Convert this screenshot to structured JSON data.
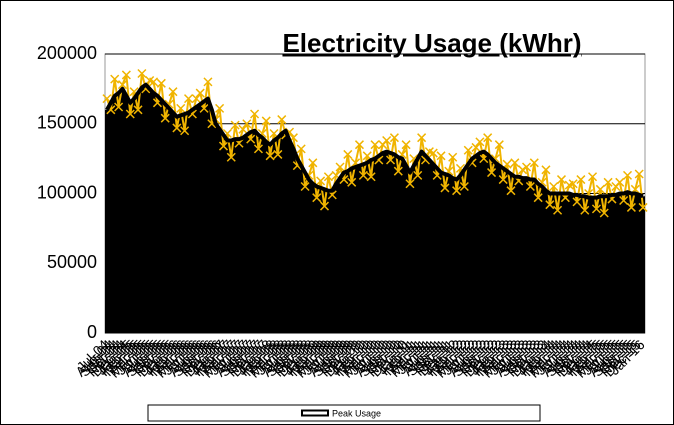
{
  "chart_data": {
    "type": "line",
    "title": "Electricity Usage (kWhr)",
    "categories": [
      "Jul-04",
      "Aug-04",
      "Sep-04",
      "Oct-04",
      "Nov-04",
      "Dec-04",
      "Jan-05",
      "Feb-05",
      "Mar-05",
      "Apr-05",
      "May-05",
      "Jun-05",
      "Jul-05",
      "Aug-05",
      "Sep-05",
      "Oct-05",
      "Nov-05",
      "Dec-05",
      "Jan-06",
      "Feb-06",
      "Mar-06",
      "Apr-06",
      "May-06",
      "Jun-06",
      "Jul-06",
      "Aug-06",
      "Sep-06",
      "Oct-06",
      "Nov-06",
      "Dec-06",
      "Jan-07",
      "Feb-07",
      "Mar-07",
      "Apr-07",
      "May-07",
      "Jun-07",
      "Jul-07",
      "Aug-07",
      "Sep-07",
      "Oct-07",
      "Nov-07",
      "Dec-07",
      "Jan-08",
      "Feb-08",
      "Mar-08",
      "Apr-08",
      "May-08",
      "Jun-08",
      "Jul-08",
      "Aug-08",
      "Sep-08",
      "Oct-08",
      "Nov-08",
      "Dec-08",
      "Jan-09",
      "Feb-09",
      "Mar-09",
      "Apr-09",
      "May-09",
      "Jun-09",
      "Jul-09",
      "Aug-09",
      "Sep-09",
      "Oct-09",
      "Nov-09",
      "Dec-09",
      "Jan-10",
      "Feb-10",
      "Mar-10",
      "Apr-10",
      "May-10",
      "Jun-10",
      "Jul-10",
      "Aug-10",
      "Sep-10",
      "Oct-10",
      "Nov-10",
      "Dec-10",
      "Jan-11",
      "Feb-11",
      "Mar-11",
      "Apr-11",
      "May-11",
      "Jun-11",
      "Jul-11",
      "Aug-11",
      "Sep-11",
      "Oct-11",
      "Nov-11",
      "Dec-11",
      "Jan-12",
      "Feb-12",
      "Mar-12",
      "Apr-12",
      "May-12",
      "Jun-12",
      "Jul-12",
      "Aug-12",
      "Sep-12",
      "Oct-12",
      "Nov-12",
      "Dec-12",
      "Jan-13",
      "Feb-13",
      "Mar-13",
      "Apr-13",
      "May-13",
      "Jun-13",
      "Jul-13",
      "Aug-13",
      "Sep-13",
      "Oct-13",
      "Nov-13",
      "Dec-13",
      "Jan-14",
      "Feb-14",
      "Mar-14",
      "Apr-14",
      "May-14",
      "Jun-14",
      "Jul-14",
      "Aug-14",
      "Sep-14",
      "Oct-14",
      "Nov-14",
      "Dec-14",
      "Jan-15",
      "Feb-15",
      "Mar-15",
      "Apr-15",
      "May-15",
      "Jun-15",
      "Jul-15",
      "Aug-15",
      "Sep-15",
      "Oct-15",
      "Nov-15",
      "Dec-15",
      "Jan-16"
    ],
    "series": [
      {
        "color": "#f0b400",
        "marker": "x",
        "values": [
          168000,
          160000,
          182000,
          162000,
          178000,
          185000,
          157000,
          173000,
          160000,
          186000,
          175000,
          181000,
          180000,
          165000,
          179000,
          154000,
          164000,
          173000,
          147000,
          161000,
          145000,
          168000,
          157000,
          168000,
          172000,
          161000,
          180000,
          150000,
          153000,
          161000,
          134000,
          143000,
          126000,
          149000,
          136000,
          146000,
          150000,
          139000,
          157000,
          132000,
          143000,
          152000,
          127000,
          143000,
          128000,
          153000,
          142000,
          144000,
          140000,
          120000,
          132000,
          105000,
          113000,
          122000,
          97000,
          109000,
          91000,
          112000,
          99000,
          113000,
          119000,
          110000,
          128000,
          108000,
          122000,
          135000,
          113000,
          127000,
          112000,
          135000,
          124000,
          135000,
          138000,
          124000,
          140000,
          116000,
          128000,
          135000,
          107000,
          125000,
          113000,
          140000,
          124000,
          130000,
          129000,
          113000,
          127000,
          104000,
          116000,
          126000,
          102000,
          118000,
          105000,
          131000,
          122000,
          133000,
          137000,
          125000,
          140000,
          115000,
          125000,
          135000,
          110000,
          121000,
          102000,
          122000,
          109000,
          117000,
          119000,
          105000,
          122000,
          97000,
          108000,
          117000,
          92000,
          105000,
          88000,
          110000,
          97000,
          106000,
          107000,
          94000,
          110000,
          88000,
          100000,
          112000,
          89000,
          103000,
          86000,
          108000,
          96000,
          105000,
          108000,
          95000,
          113000,
          90000,
          103000,
          114000,
          90000
        ]
      },
      {
        "name": "Peak Usage",
        "color": "#000000",
        "fill": true,
        "values": [
          160000,
          165000,
          170000,
          172000,
          175000,
          170000,
          165000,
          168000,
          172000,
          176000,
          178000,
          175000,
          172000,
          170000,
          167000,
          164000,
          161000,
          158000,
          155000,
          156000,
          157000,
          158000,
          160000,
          162000,
          164000,
          166000,
          168000,
          160000,
          150000,
          146000,
          142000,
          138000,
          138000,
          139000,
          139000,
          140000,
          142000,
          144000,
          145000,
          142000,
          140000,
          137000,
          135000,
          138000,
          140000,
          143000,
          145000,
          138000,
          132000,
          125000,
          120000,
          115000,
          110000,
          107000,
          105000,
          104000,
          103000,
          102000,
          102000,
          107000,
          111000,
          115000,
          116000,
          118000,
          119000,
          120000,
          121000,
          122000,
          124000,
          125000,
          127000,
          129000,
          130000,
          129000,
          128000,
          126000,
          125000,
          120000,
          115000,
          120000,
          125000,
          130000,
          127000,
          124000,
          121000,
          118000,
          115000,
          114000,
          113000,
          111000,
          110000,
          113000,
          117000,
          121000,
          125000,
          127000,
          129000,
          130000,
          128000,
          125000,
          122000,
          120000,
          118000,
          116000,
          114000,
          112000,
          112000,
          111000,
          111000,
          110000,
          110000,
          107000,
          105000,
          102000,
          100000,
          100000,
          100000,
          100000,
          100000,
          100000,
          99000,
          99000,
          98000,
          98000,
          97000,
          97000,
          97000,
          98000,
          98000,
          98000,
          99000,
          99000,
          100000,
          100000,
          101000,
          100000,
          100000,
          99000,
          98000
        ]
      }
    ],
    "ylim": [
      0,
      200000
    ],
    "yticks": [
      0,
      50000,
      100000,
      150000,
      200000
    ],
    "grid": true,
    "legend": "bottom"
  }
}
